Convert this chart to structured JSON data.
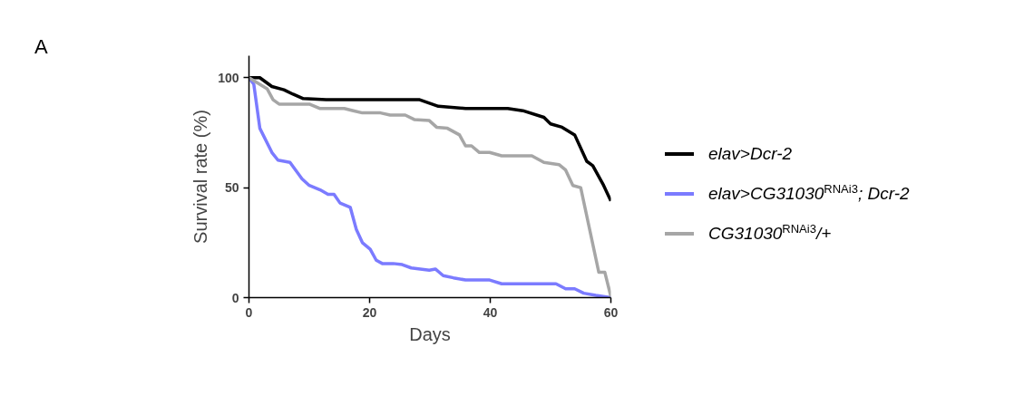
{
  "chart_data": {
    "type": "line",
    "xlabel": "Days",
    "ylabel": "Survival rate (%)",
    "annotations": [
      "A"
    ],
    "xlim": [
      0,
      60
    ],
    "xticks": [
      0,
      20,
      40,
      60
    ],
    "ylim": [
      0,
      110
    ],
    "yticks": [
      0,
      50,
      100
    ],
    "grid": false,
    "legend": "right",
    "series": [
      {
        "name": "elav>Dcr-2",
        "color": "#000000",
        "x": [
          0,
          1.8,
          3.8,
          5.8,
          7.3,
          9,
          12.8,
          28.3,
          31.4,
          35.9,
          42.9,
          45.4,
          48.9,
          50,
          51.9,
          54,
          56,
          57,
          58.8,
          60
        ],
        "values": [
          100,
          100,
          96,
          94.5,
          92.5,
          90.5,
          90,
          90,
          87,
          86,
          86,
          85,
          82,
          79,
          77.5,
          74,
          62,
          60,
          51,
          44
        ]
      },
      {
        "name": "elav>CG31030$^{RNAi3}$; Dcr-2",
        "color": "#7b7bff",
        "x": [
          0,
          0.8,
          1.8,
          3.8,
          4.8,
          6.8,
          8.8,
          10,
          11.8,
          13.1,
          14.1,
          15.1,
          16.8,
          17.8,
          18.8,
          20.1,
          21.1,
          22.1,
          23.9,
          25.4,
          26.9,
          29.9,
          30.9,
          32.2,
          33.9,
          35.9,
          39.9,
          41.9,
          50.9,
          52.5,
          54,
          55.5,
          57.5,
          60
        ],
        "values": [
          100,
          97,
          77,
          66,
          62.5,
          61.5,
          54,
          51,
          49,
          47,
          47,
          43,
          41,
          31,
          25,
          22,
          17,
          15.5,
          15.5,
          15,
          13.5,
          12.5,
          13,
          10,
          9,
          8,
          8,
          6.3,
          6.3,
          4,
          4,
          2,
          1,
          0
        ]
      },
      {
        "name": "CG31030$^{RNAi3}$/+",
        "color": "#a6a6a6",
        "x": [
          0,
          3,
          4,
          5,
          10,
          11.8,
          15.8,
          17.3,
          18.8,
          21.8,
          23.4,
          25.9,
          27.4,
          29.9,
          31.1,
          32.9,
          34.9,
          35.9,
          36.9,
          38.2,
          39.9,
          41.9,
          46.9,
          48.9,
          51.4,
          52.5,
          53.7,
          55,
          58,
          59,
          60
        ],
        "values": [
          100,
          95,
          90,
          88,
          88,
          86,
          86,
          85,
          84,
          84,
          83,
          83,
          81,
          80.5,
          77.5,
          77,
          74,
          69,
          69,
          66,
          66,
          64.5,
          64.5,
          61.5,
          60.5,
          58,
          51,
          50,
          11.5,
          11.5,
          0.5
        ]
      }
    ]
  }
}
